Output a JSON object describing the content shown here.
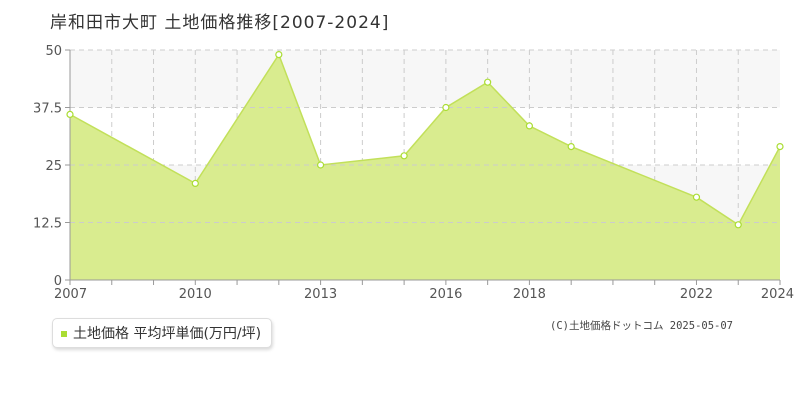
{
  "chart_data": {
    "type": "area",
    "title": "岸和田市大町  土地価格推移[2007-2024]",
    "x": [
      2007,
      2008,
      2009,
      2010,
      2011,
      2012,
      2013,
      2014,
      2015,
      2016,
      2017,
      2018,
      2019,
      2020,
      2021,
      2022,
      2023,
      2024
    ],
    "series": [
      {
        "name": "土地価格 平均坪単価(万円/坪)",
        "points": [
          [
            2007,
            36
          ],
          [
            2010,
            21
          ],
          [
            2012,
            49
          ],
          [
            2013,
            25
          ],
          [
            2015,
            27
          ],
          [
            2016,
            37.5
          ],
          [
            2017,
            43
          ],
          [
            2018,
            33.5
          ],
          [
            2019,
            29
          ],
          [
            2022,
            18
          ],
          [
            2023,
            12
          ],
          [
            2024,
            29
          ]
        ]
      }
    ],
    "x_tick_labels": [
      "2007",
      "2010",
      "2013",
      "2016",
      "2018",
      "2022",
      "2024"
    ],
    "y_ticks": [
      0,
      12.5,
      25,
      37.5,
      50
    ],
    "y_tick_labels": [
      "0",
      "12.5",
      "25",
      "37.5",
      "50"
    ],
    "xlim": [
      2007,
      2024
    ],
    "ylim": [
      0,
      50
    ],
    "grid": true,
    "legend_position": "bottom-left",
    "colors": {
      "fill": "#d9ec8f",
      "line": "#c2e05a",
      "marker_stroke": "#aadd33",
      "band": "#f7f7f7",
      "grid": "#cccccc",
      "legend_swatch": "#aadd33"
    }
  },
  "legend": {
    "label": "土地価格 平均坪単価(万円/坪)"
  },
  "footer": {
    "copyright": "(C)土地価格ドットコム 2025-05-07"
  }
}
